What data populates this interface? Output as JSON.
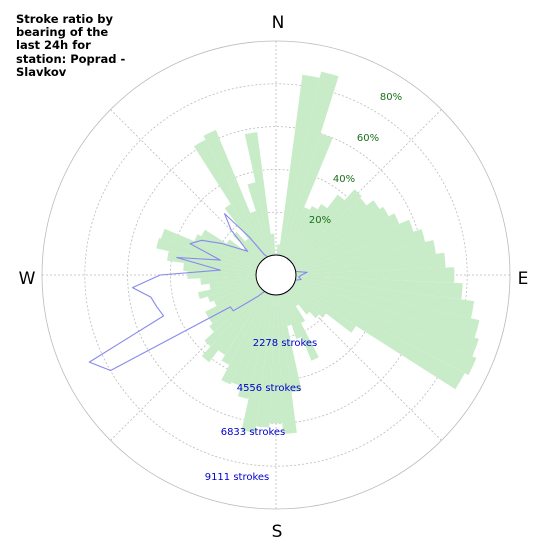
{
  "title": "Stroke ratio by bearing of the last 24h for station: Poprad - Slavkov",
  "compass": {
    "n": "N",
    "e": "E",
    "s": "S",
    "w": "W"
  },
  "colors": {
    "bar": "#c8ebc8",
    "line": "#8888ee",
    "ratio_label": "#1a6e1a",
    "stroke_label": "#0000cc",
    "grid": "#bbbbbb"
  },
  "chart_data": {
    "type": "polar-bar-with-line",
    "title": "Stroke ratio by bearing of the last 24h for station: Poprad - Slavkov",
    "grid": true,
    "ratio_axis": {
      "labels": [
        "20%",
        "40%",
        "60%",
        "80%"
      ],
      "values": [
        20,
        40,
        60,
        80
      ],
      "max": 100
    },
    "stroke_axis": {
      "labels": [
        "2278 strokes",
        "4556 strokes",
        "6833 strokes",
        "9111 strokes"
      ],
      "values": [
        2278,
        4556,
        6833,
        9111
      ],
      "max": 11389
    },
    "bars": {
      "name": "Stroke ratio",
      "unit": "%",
      "bin_width_deg": 5,
      "bearings_deg": [
        0,
        5,
        10,
        15,
        20,
        25,
        30,
        35,
        40,
        45,
        50,
        55,
        60,
        65,
        70,
        75,
        80,
        85,
        90,
        95,
        100,
        105,
        110,
        115,
        120,
        125,
        130,
        135,
        140,
        145,
        150,
        155,
        160,
        165,
        170,
        175,
        180,
        185,
        190,
        195,
        200,
        205,
        210,
        215,
        220,
        225,
        230,
        235,
        240,
        245,
        250,
        255,
        260,
        265,
        270,
        275,
        280,
        285,
        290,
        295,
        300,
        305,
        310,
        315,
        320,
        325,
        330,
        335,
        340,
        345,
        350,
        355
      ],
      "values": [
        0,
        5,
        85,
        88,
        60,
        25,
        27,
        30,
        38,
        45,
        44,
        48,
        50,
        53,
        58,
        62,
        66,
        70,
        74,
        78,
        84,
        88,
        90,
        92,
        90,
        35,
        20,
        18,
        14,
        8,
        16,
        34,
        22,
        15,
        46,
        65,
        60,
        62,
        65,
        50,
        45,
        46,
        38,
        35,
        42,
        36,
        30,
        28,
        28,
        22,
        24,
        28,
        22,
        26,
        32,
        34,
        42,
        48,
        47,
        32,
        30,
        18,
        10,
        18,
        12,
        30,
        62,
        64,
        22,
        35,
        58,
        10
      ]
    },
    "line": {
      "name": "Strokes",
      "unit": "strokes",
      "bearings_deg": [
        0,
        5,
        10,
        15,
        20,
        25,
        30,
        35,
        40,
        45,
        50,
        55,
        60,
        65,
        70,
        75,
        80,
        85,
        90,
        95,
        100,
        105,
        110,
        115,
        120,
        125,
        130,
        135,
        140,
        145,
        150,
        155,
        160,
        165,
        170,
        175,
        180,
        185,
        190,
        195,
        200,
        205,
        210,
        215,
        220,
        225,
        230,
        235,
        240,
        245,
        250,
        255,
        260,
        265,
        270,
        275,
        280,
        285,
        290,
        295,
        300,
        305,
        310,
        315,
        320,
        325,
        330,
        335,
        340,
        345,
        350,
        355
      ],
      "values": [
        0,
        0,
        0,
        0,
        0,
        0,
        0,
        0,
        0,
        0,
        0,
        0,
        0,
        0,
        0,
        0,
        0,
        600,
        300,
        150,
        300,
        0,
        0,
        0,
        0,
        0,
        0,
        0,
        0,
        0,
        0,
        0,
        0,
        0,
        0,
        0,
        0,
        0,
        0,
        0,
        0,
        0,
        0,
        0,
        400,
        900,
        1900,
        1900,
        9100,
        9900,
        5300,
        5500,
        5700,
        6600,
        5100,
        1900,
        4300,
        2000,
        3800,
        3300,
        2300,
        1400,
        900,
        2300,
        3200,
        1400,
        200,
        0,
        0,
        0,
        0,
        0
      ]
    }
  }
}
